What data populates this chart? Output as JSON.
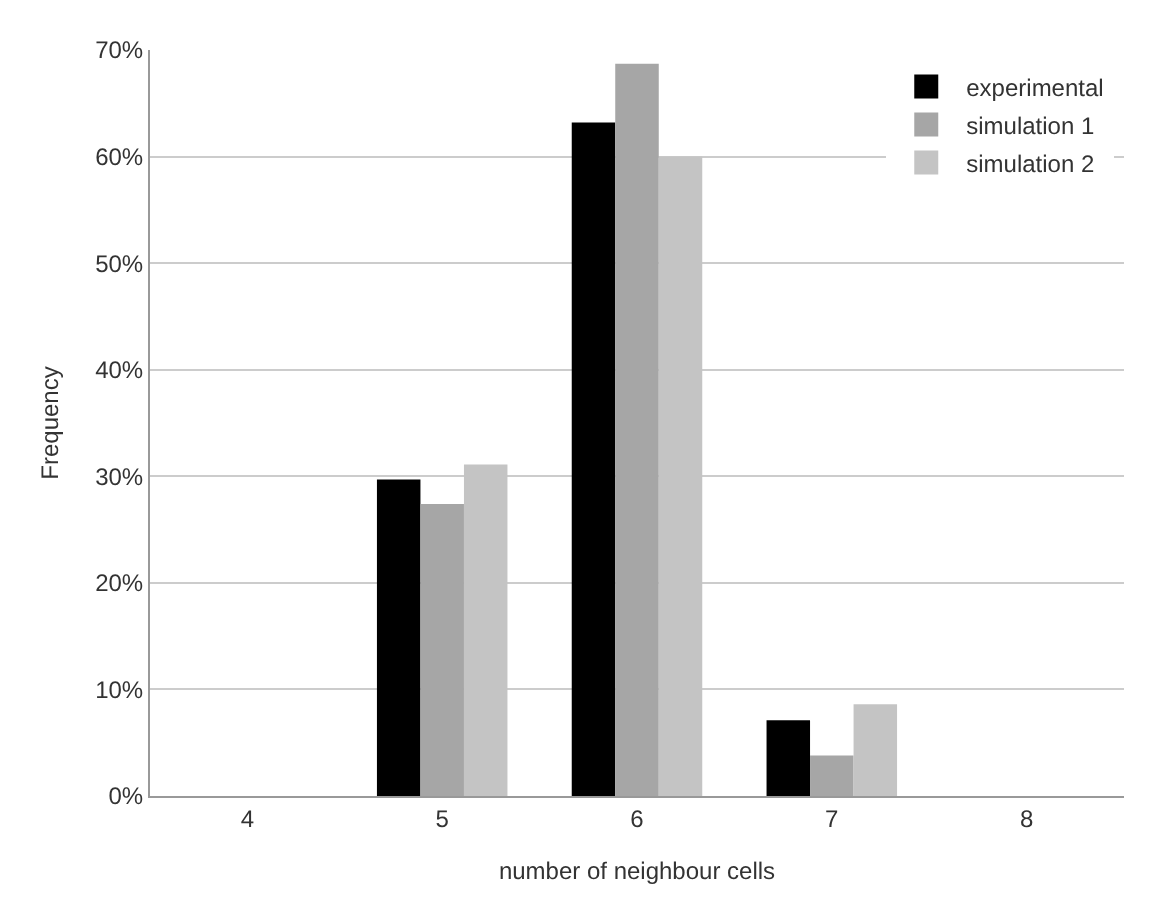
{
  "chart_data": {
    "type": "bar",
    "xlabel": "number of neighbour cells",
    "ylabel": "Frequency",
    "categories": [
      "4",
      "5",
      "6",
      "7",
      "8"
    ],
    "series": [
      {
        "name": "experimental",
        "color": "#000000",
        "values": [
          0,
          29.7,
          63.2,
          7.1,
          0
        ]
      },
      {
        "name": "simulation 1",
        "color": "#a6a6a6",
        "values": [
          0,
          27.4,
          68.7,
          3.8,
          0
        ]
      },
      {
        "name": "simulation 2",
        "color": "#c4c4c4",
        "values": [
          0,
          31.1,
          60.0,
          8.6,
          0
        ]
      }
    ],
    "ylim": [
      0,
      70
    ],
    "yticks": [
      {
        "value": 0,
        "label": "0%"
      },
      {
        "value": 10,
        "label": "10%"
      },
      {
        "value": 20,
        "label": "20%"
      },
      {
        "value": 30,
        "label": "30%"
      },
      {
        "value": 40,
        "label": "40%"
      },
      {
        "value": 50,
        "label": "50%"
      },
      {
        "value": 60,
        "label": "60%"
      },
      {
        "value": 70,
        "label": "70%"
      }
    ],
    "grid": "y",
    "legend": "top right"
  }
}
